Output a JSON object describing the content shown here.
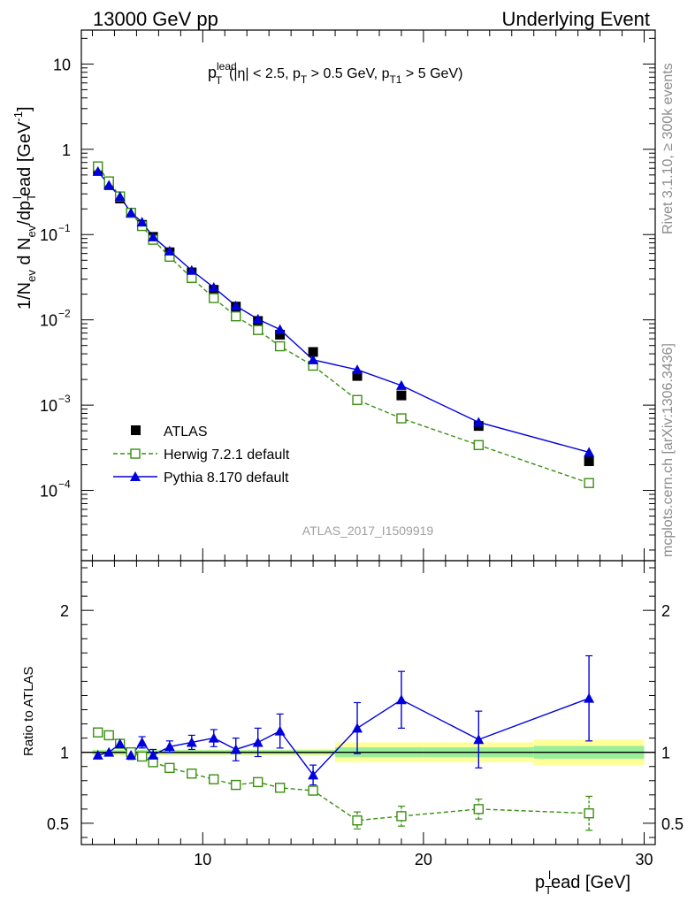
{
  "header": {
    "left": "13000 GeV pp",
    "right": "Underlying Event"
  },
  "side_labels": {
    "rivet": "Rivet 3.1.10, ≥ 300k events",
    "mcplots": "mcplots.cern.ch [arXiv:1306.3436]"
  },
  "watermark": "ATLAS_2017_I1509919",
  "cut": {
    "p": "p",
    "lead_sup": "lead",
    "T_sub": "T",
    "part1": "(|η| < 2.5, p",
    "part2": " > 0.5 GeV, p",
    "T1_sub": "T1",
    "part3": " > 5 GeV)"
  },
  "ylabel_main": {
    "a": "1/N",
    "ev_sub": "ev",
    "b": " d N",
    "c": "/dp",
    "l_sup": "l",
    "d": "ead [GeV",
    "exp_sup": "-1",
    "e": "]"
  },
  "ylabel_ratio": "Ratio to ATLAS",
  "xlabel": {
    "p": "p",
    "T_sub": "T",
    "l_sup": "l",
    "rest": "ead [GeV]"
  },
  "colors": {
    "data": "#000000",
    "herwig": "#3a8f10",
    "pythia": "#0000dd",
    "band_inner": "#99ee99",
    "band_outer": "#ffff99"
  },
  "chart_data": {
    "type": "scatter",
    "title": "p_T^lead (|eta| < 2.5, p_T > 0.5 GeV, p_T1 > 5 GeV)",
    "xlabel": "p_T^lead [GeV]",
    "ylabel": "1/N_ev d N_ev/dp_T^lead [GeV^-1]",
    "ylabel_ratio": "Ratio to ATLAS",
    "xlim": [
      4.5,
      30.5
    ],
    "ylim_main": [
      1.5e-05,
      25
    ],
    "ylim_ratio": [
      0.35,
      2.35
    ],
    "y_scale": "log",
    "x_ticks": [
      10,
      20,
      30
    ],
    "y_main_ticks": [
      {
        "value": 10,
        "label": "10",
        "exp": ""
      },
      {
        "value": 1,
        "label": "1",
        "exp": ""
      },
      {
        "value": 0.1,
        "label": "10",
        "exp": "−1"
      },
      {
        "value": 0.01,
        "label": "10",
        "exp": "−2"
      },
      {
        "value": 0.001,
        "label": "10",
        "exp": "−3"
      },
      {
        "value": 0.0001,
        "label": "10",
        "exp": "−4"
      }
    ],
    "y_ratio_ticks": [
      {
        "value": 0.5,
        "label": "0.5"
      },
      {
        "value": 1,
        "label": "1"
      },
      {
        "value": 2,
        "label": "2"
      }
    ],
    "x": [
      5.25,
      5.75,
      6.25,
      6.75,
      7.25,
      7.75,
      8.5,
      9.5,
      10.5,
      11.5,
      12.5,
      13.5,
      15,
      17,
      19,
      22.5,
      27.5
    ],
    "bin_edges": [
      5,
      5.5,
      6,
      6.5,
      7,
      7.5,
      8,
      9,
      10,
      11,
      12,
      13,
      14,
      16,
      18,
      20,
      25,
      30
    ],
    "series": [
      {
        "name": "ATLAS",
        "marker": "filled-square",
        "values": [
          0.56,
          0.38,
          0.265,
          0.18,
          0.13,
          0.094,
          0.062,
          0.036,
          0.0225,
          0.0143,
          0.0097,
          0.0067,
          0.0042,
          0.0022,
          0.0013,
          0.00057,
          0.00022
        ],
        "ratio": [
          1,
          1,
          1,
          1,
          1,
          1,
          1,
          1,
          1,
          1,
          1,
          1,
          1,
          1,
          1,
          1,
          1
        ]
      },
      {
        "name": "Herwig 7.2.1 default",
        "marker": "open-square",
        "line": "dashed",
        "values": [
          0.63,
          0.42,
          0.28,
          0.18,
          0.126,
          0.087,
          0.055,
          0.031,
          0.018,
          0.011,
          0.0076,
          0.0049,
          0.0029,
          0.00115,
          0.0007,
          0.00034,
          0.000122
        ],
        "ratio": [
          1.14,
          1.12,
          1.06,
          1.0,
          0.97,
          0.93,
          0.89,
          0.85,
          0.81,
          0.77,
          0.79,
          0.75,
          0.73,
          0.52,
          0.55,
          0.6,
          0.57
        ],
        "ratio_err": [
          0.01,
          0.01,
          0.01,
          0.01,
          0.01,
          0.01,
          0.01,
          0.01,
          0.015,
          0.02,
          0.03,
          0.03,
          0.03,
          0.06,
          0.07,
          0.07,
          0.12
        ]
      },
      {
        "name": "Pythia 8.170 default",
        "marker": "filled-triangle",
        "line": "solid",
        "values": [
          0.55,
          0.38,
          0.28,
          0.18,
          0.14,
          0.094,
          0.064,
          0.038,
          0.024,
          0.0146,
          0.0102,
          0.0077,
          0.0034,
          0.0026,
          0.0017,
          0.00063,
          0.00028
        ],
        "ratio": [
          0.98,
          1.0,
          1.06,
          0.98,
          1.07,
          0.98,
          1.04,
          1.07,
          1.1,
          1.02,
          1.07,
          1.15,
          0.84,
          1.17,
          1.37,
          1.09,
          1.38
        ],
        "ratio_err": [
          0.01,
          0.015,
          0.02,
          0.03,
          0.04,
          0.04,
          0.04,
          0.05,
          0.06,
          0.08,
          0.1,
          0.12,
          0.07,
          0.18,
          0.2,
          0.2,
          0.3
        ]
      }
    ],
    "band": {
      "inner": [
        0.015,
        0.015,
        0.015,
        0.015,
        0.015,
        0.015,
        0.015,
        0.015,
        0.015,
        0.015,
        0.015,
        0.015,
        0.015,
        0.035,
        0.035,
        0.035,
        0.045
      ],
      "outer": [
        0.02,
        0.02,
        0.02,
        0.02,
        0.02,
        0.02,
        0.02,
        0.02,
        0.02,
        0.02,
        0.02,
        0.02,
        0.025,
        0.07,
        0.07,
        0.07,
        0.09
      ]
    },
    "legend_position": "lower-left"
  }
}
